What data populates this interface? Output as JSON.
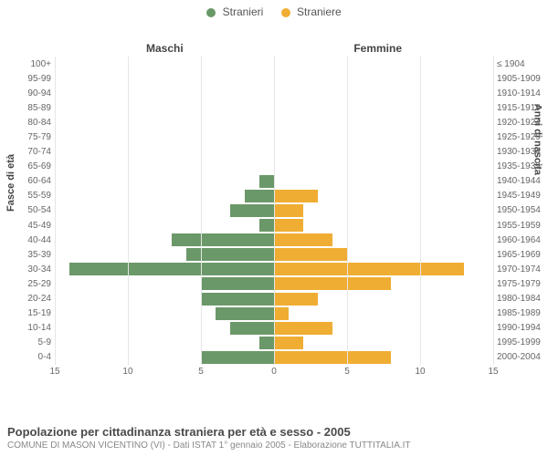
{
  "legend": {
    "male": {
      "label": "Stranieri",
      "color": "#6b9868"
    },
    "female": {
      "label": "Straniere",
      "color": "#f0ad33"
    }
  },
  "headers": {
    "male": "Maschi",
    "female": "Femmine"
  },
  "yaxis": {
    "left": "Fasce di età",
    "right": "Anni di nascita"
  },
  "x": {
    "max": 15,
    "ticks_left": [
      15,
      10,
      5,
      0
    ],
    "ticks_right": [
      0,
      5,
      10,
      15
    ]
  },
  "colors": {
    "grid": "#e6e6e6",
    "center": "#666666",
    "bg": "#ffffff"
  },
  "rows": [
    {
      "age": "100+",
      "birth": "≤ 1904",
      "m": 0,
      "f": 0
    },
    {
      "age": "95-99",
      "birth": "1905-1909",
      "m": 0,
      "f": 0
    },
    {
      "age": "90-94",
      "birth": "1910-1914",
      "m": 0,
      "f": 0
    },
    {
      "age": "85-89",
      "birth": "1915-1919",
      "m": 0,
      "f": 0
    },
    {
      "age": "80-84",
      "birth": "1920-1924",
      "m": 0,
      "f": 0
    },
    {
      "age": "75-79",
      "birth": "1925-1929",
      "m": 0,
      "f": 0
    },
    {
      "age": "70-74",
      "birth": "1930-1934",
      "m": 0,
      "f": 0
    },
    {
      "age": "65-69",
      "birth": "1935-1939",
      "m": 0,
      "f": 0
    },
    {
      "age": "60-64",
      "birth": "1940-1944",
      "m": 1,
      "f": 0
    },
    {
      "age": "55-59",
      "birth": "1945-1949",
      "m": 2,
      "f": 3
    },
    {
      "age": "50-54",
      "birth": "1950-1954",
      "m": 3,
      "f": 2
    },
    {
      "age": "45-49",
      "birth": "1955-1959",
      "m": 1,
      "f": 2
    },
    {
      "age": "40-44",
      "birth": "1960-1964",
      "m": 7,
      "f": 4
    },
    {
      "age": "35-39",
      "birth": "1965-1969",
      "m": 6,
      "f": 5
    },
    {
      "age": "30-34",
      "birth": "1970-1974",
      "m": 14,
      "f": 13
    },
    {
      "age": "25-29",
      "birth": "1975-1979",
      "m": 5,
      "f": 8
    },
    {
      "age": "20-24",
      "birth": "1980-1984",
      "m": 5,
      "f": 3
    },
    {
      "age": "15-19",
      "birth": "1985-1989",
      "m": 4,
      "f": 1
    },
    {
      "age": "10-14",
      "birth": "1990-1994",
      "m": 3,
      "f": 4
    },
    {
      "age": "5-9",
      "birth": "1995-1999",
      "m": 1,
      "f": 2
    },
    {
      "age": "0-4",
      "birth": "2000-2004",
      "m": 5,
      "f": 8
    }
  ],
  "footer": {
    "title": "Popolazione per cittadinanza straniera per età e sesso - 2005",
    "sub": "COMUNE DI MASON VICENTINO (VI) - Dati ISTAT 1° gennaio 2005 - Elaborazione TUTTITALIA.IT"
  }
}
